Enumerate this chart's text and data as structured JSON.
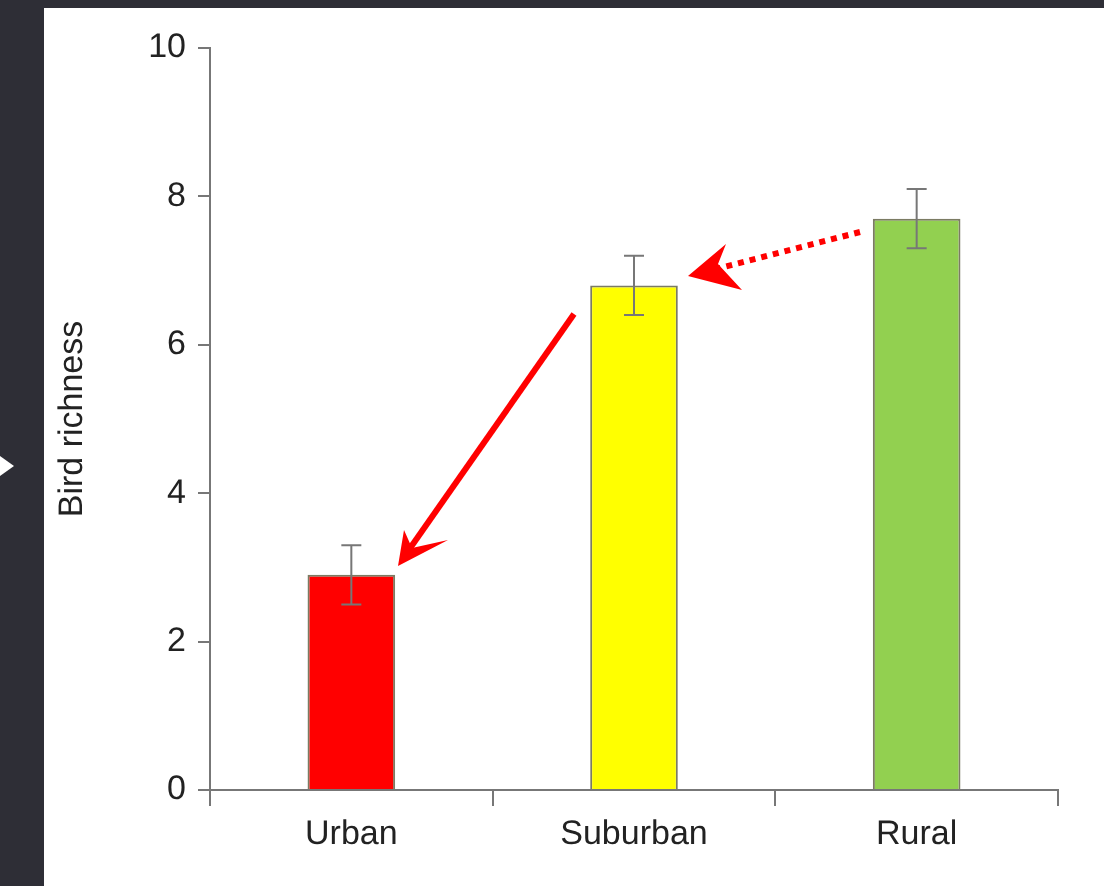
{
  "chart_data": {
    "type": "bar",
    "ylabel": "Bird richness",
    "categories": [
      "Urban",
      "Suburban",
      "Rural"
    ],
    "values": [
      2.9,
      6.8,
      7.7
    ],
    "colors": [
      "#ff0000",
      "#ffff00",
      "#92d050"
    ],
    "errors": [
      0.4,
      0.4,
      0.4
    ],
    "ylim": [
      0,
      10
    ],
    "yticks": [
      0,
      2,
      4,
      6,
      8,
      10
    ],
    "grid": false,
    "legend": false
  }
}
